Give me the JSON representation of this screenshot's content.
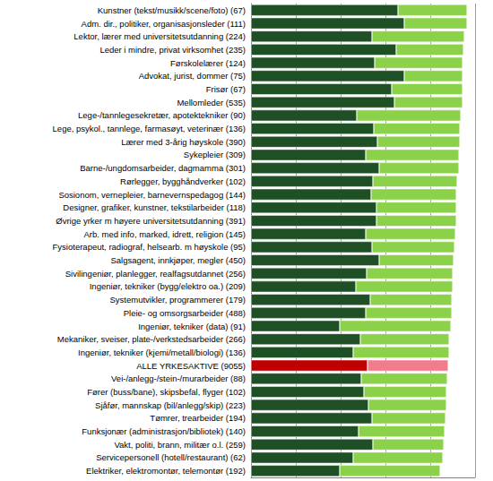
{
  "chart_data": {
    "type": "bar",
    "orientation": "horizontal",
    "stacked": true,
    "grid": true,
    "tick_labels": "y",
    "xlim": [
      0,
      100
    ],
    "xticks": [
      0,
      20,
      40,
      60,
      80,
      100
    ],
    "categories": [
      "Kunstner (tekst/musikk/scene/foto) (67)",
      "Adm. dir., politiker, organisasjonsleder (111)",
      "Lektor, lærer med universitetsutdanning (224)",
      "Leder i mindre, privat virksomhet (235)",
      "Førskolelærer (124)",
      "Advokat, jurist, dommer (75)",
      "Frisør (67)",
      "Mellomleder (535)",
      "Lege-/tannlegesekretær, apotektekniker (90)",
      "Lege, psykol., tannlege, farmasøyt, veterinær (136)",
      "Lærer med 3-årig høyskole (390)",
      "Sykepleier (309)",
      "Barne-/ungdomsarbeider, dagmamma (301)",
      "Rørlegger, bygghåndverker (102)",
      "Sosionom, vernepleier, barnevernspedagog (144)",
      "Designer, grafiker, kunstner, tekstilarbeider (118)",
      "Øvrige yrker m høyere universitetsutdanning (391)",
      "Arb. med info, marked, idrett, religion (145)",
      "Fysioterapeut, radiograf, helsearb. m høyskole (95)",
      "Salgsagent, innkjøper, megler (450)",
      "Sivilingeniør, planlegger, realfagsutdannet (256)",
      "Ingeniør, tekniker (bygg/elektro oa.) (209)",
      "Systemutvikler, programmerer (179)",
      "Pleie- og omsorgsarbeider (488)",
      "Ingeniør, tekniker (data) (91)",
      "Mekaniker, sveiser, plate-/verkstedsarbeider (266)",
      "Ingeniør, tekniker (kjemi/metall/biologi) (136)",
      "ALLE YRKESAKTIVE (9055)",
      "Vei-/anlegg-/stein-/murarbeider (88)",
      "Fører (buss/bane), skipsbefal, flyger (102)",
      "Sjåfør, mannskap (bil/anlegg/skip) (223)",
      "Tømrer, trearbeider (194)",
      "Funksjonær (administrasjon/bibliotek) (140)",
      "Vakt, politi, brann, militær o.l. (259)",
      "Servicepersonell (hotell/restaurant) (62)",
      "Elektriker, elektromontør, telemontør (192)"
    ],
    "series": [
      {
        "colors": [
          "#1f4f24",
          "#1f4f24",
          "#1f4f24",
          "#1f4f24",
          "#1f4f24",
          "#1f4f24",
          "#1f4f24",
          "#1f4f24",
          "#1f4f24",
          "#1f4f24",
          "#1f4f24",
          "#1f4f24",
          "#1f4f24",
          "#1f4f24",
          "#1f4f24",
          "#1f4f24",
          "#1f4f24",
          "#1f4f24",
          "#1f4f24",
          "#1f4f24",
          "#1f4f24",
          "#1f4f24",
          "#1f4f24",
          "#1f4f24",
          "#1f4f24",
          "#1f4f24",
          "#1f4f24",
          "#c00000",
          "#1f4f24",
          "#1f4f24",
          "#1f4f24",
          "#1f4f24",
          "#1f4f24",
          "#1f4f24",
          "#1f4f24",
          "#1f4f24"
        ],
        "values": [
          65.6,
          68.4,
          54,
          64.8,
          55.2,
          68.4,
          62.8,
          64,
          47.2,
          54.8,
          56.4,
          51.2,
          57.2,
          54.4,
          53.6,
          56,
          56,
          51.2,
          54,
          57.2,
          51.6,
          46.8,
          53.2,
          51.2,
          39.6,
          48.8,
          45.6,
          52,
          49.2,
          50.4,
          52.4,
          54,
          48,
          54.4,
          45.6,
          39.6
        ]
      },
      {
        "colors": [
          "#8cd14a",
          "#8cd14a",
          "#8cd14a",
          "#8cd14a",
          "#8cd14a",
          "#8cd14a",
          "#8cd14a",
          "#8cd14a",
          "#8cd14a",
          "#8cd14a",
          "#8cd14a",
          "#8cd14a",
          "#8cd14a",
          "#8cd14a",
          "#8cd14a",
          "#8cd14a",
          "#8cd14a",
          "#8cd14a",
          "#8cd14a",
          "#8cd14a",
          "#8cd14a",
          "#8cd14a",
          "#8cd14a",
          "#8cd14a",
          "#8cd14a",
          "#8cd14a",
          "#8cd14a",
          "#f07c8c",
          "#8cd14a",
          "#8cd14a",
          "#8cd14a",
          "#8cd14a",
          "#8cd14a",
          "#8cd14a",
          "#8cd14a",
          "#8cd14a"
        ],
        "values": [
          30.8,
          28,
          41.2,
          30,
          39.2,
          26,
          31.6,
          30.4,
          46.4,
          38.4,
          36.8,
          41.6,
          35.6,
          37.6,
          38,
          35.6,
          35.6,
          40,
          36.8,
          33.2,
          38.4,
          43.2,
          36.4,
          38.4,
          49.6,
          39.6,
          42.8,
          36,
          38.4,
          36.8,
          34.8,
          32.8,
          38.4,
          31.6,
          40,
          44.8
        ]
      }
    ]
  }
}
